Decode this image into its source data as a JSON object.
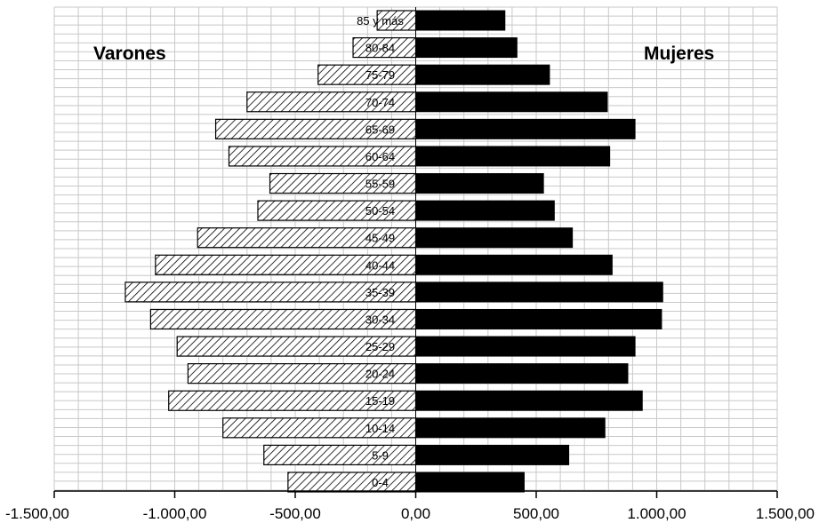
{
  "chart_data": {
    "type": "bar",
    "orientation": "horizontal",
    "categories": [
      "0-4",
      "5-9",
      "10-14",
      "15-19",
      "20-24",
      "25-29",
      "30-34",
      "35-39",
      "40-44",
      "45-49",
      "50-54",
      "55-59",
      "60-64",
      "65-69",
      "70-74",
      "75-79",
      "80-84",
      "85 y más"
    ],
    "series": [
      {
        "name": "Varones",
        "values": [
          -530,
          -630,
          -800,
          -1025,
          -945,
          -990,
          -1100,
          -1205,
          -1080,
          -905,
          -655,
          -605,
          -775,
          -830,
          -700,
          -405,
          -260,
          -160
        ]
      },
      {
        "name": "Mujeres",
        "values": [
          450,
          635,
          785,
          940,
          880,
          910,
          1020,
          1025,
          815,
          650,
          575,
          530,
          805,
          910,
          795,
          555,
          420,
          370
        ]
      }
    ],
    "xlim": [
      -1500,
      1500
    ],
    "xticks": [
      -1500,
      -1000,
      -500,
      0,
      500,
      1000,
      1500
    ],
    "xtick_labels": [
      "-1.500,00",
      "-1.000,00",
      "-500,00",
      "0,00",
      "500,00",
      "1.000,00",
      "1.500,00"
    ],
    "left_label": "Varones",
    "right_label": "Mujeres",
    "grid": true,
    "colors": {
      "Varones": "#ffffff",
      "Mujeres": "#000000",
      "hatch": "#000000",
      "grid": "#c8c8c8"
    }
  }
}
